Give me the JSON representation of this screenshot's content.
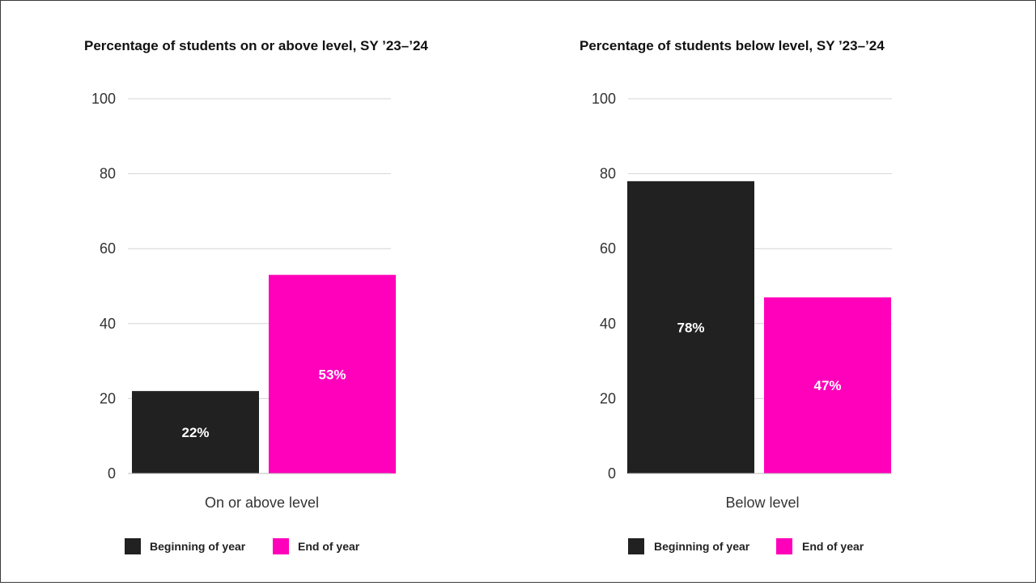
{
  "chart_data": [
    {
      "type": "bar",
      "title": "Percentage of students on or above level, SY ’23–’24",
      "categories": [
        "On or above level"
      ],
      "series": [
        {
          "name": "Beginning of year",
          "values": [
            22
          ],
          "labels": [
            "22%"
          ],
          "color": "#212121"
        },
        {
          "name": "End of year",
          "values": [
            53
          ],
          "labels": [
            "53%"
          ],
          "color": "#ff00bb"
        }
      ],
      "xlabel": "On or above level",
      "ylabel": "",
      "ylim": [
        0,
        100
      ],
      "yticks": [
        "0",
        "20",
        "40",
        "60",
        "80",
        "100"
      ],
      "grid": true,
      "legend": "bottom"
    },
    {
      "type": "bar",
      "title": "Percentage of students below level, SY ’23–’24",
      "categories": [
        "Below level"
      ],
      "series": [
        {
          "name": "Beginning of year",
          "values": [
            78
          ],
          "labels": [
            "78%"
          ],
          "color": "#212121"
        },
        {
          "name": "End of year",
          "values": [
            47
          ],
          "labels": [
            "47%"
          ],
          "color": "#ff00bb"
        }
      ],
      "xlabel": "Below level",
      "ylabel": "",
      "ylim": [
        0,
        100
      ],
      "yticks": [
        "0",
        "20",
        "40",
        "60",
        "80",
        "100"
      ],
      "grid": true,
      "legend": "bottom"
    }
  ]
}
